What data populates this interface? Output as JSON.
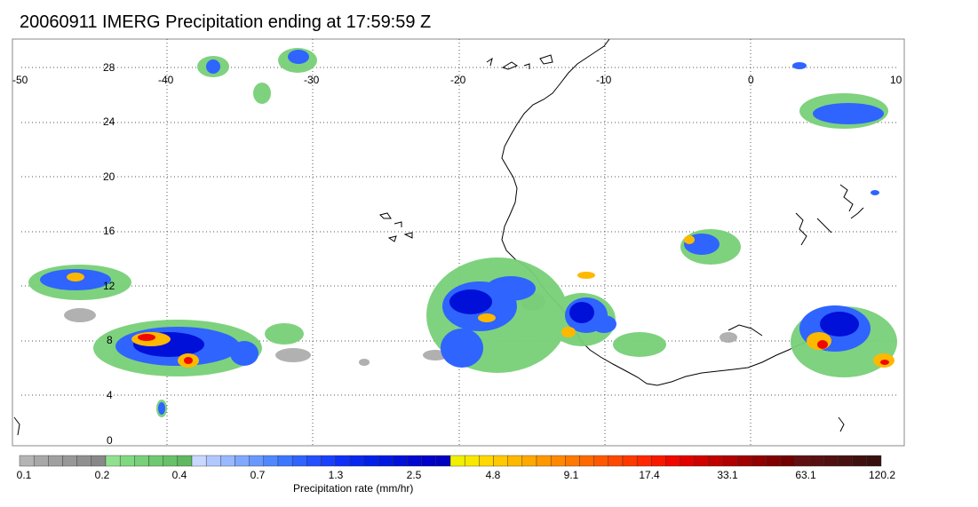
{
  "title": "20060911 IMERG Precipitation ending at 17:59:59 Z",
  "map": {
    "lon_labels": [
      "-50",
      "-40",
      "-30",
      "-20",
      "-10",
      "0",
      "10"
    ],
    "lat_labels": [
      "28",
      "24",
      "20",
      "16",
      "12",
      "8",
      "4",
      "0"
    ],
    "extent": {
      "lon": [
        -50,
        10
      ],
      "lat": [
        -1,
        30
      ]
    },
    "gridlines": "dotted",
    "colors": {
      "land_outline": "#000000",
      "grid": "#555555"
    }
  },
  "colorbar": {
    "label": "Precipitation rate (mm/hr)",
    "tick_labels": [
      "0.1",
      "0.2",
      "0.4",
      "0.7",
      "1.3",
      "2.5",
      "4.8",
      "9.1",
      "17.4",
      "33.1",
      "63.1",
      "120.2"
    ],
    "colors": [
      "#b4b4b4",
      "#a8a8a8",
      "#a0a0a0",
      "#989898",
      "#909090",
      "#888888",
      "#90e090",
      "#80d880",
      "#78d078",
      "#70c870",
      "#68c068",
      "#60b860",
      "#c8d8ff",
      "#b0c8ff",
      "#98b8ff",
      "#80a8ff",
      "#6898ff",
      "#5088ff",
      "#3c78ff",
      "#2f64ff",
      "#2450ff",
      "#1a40ff",
      "#1030f8",
      "#0828f0",
      "#0020e8",
      "#0018e0",
      "#0010d8",
      "#0008d0",
      "#0000c8",
      "#0000c0",
      "#f0f000",
      "#f8e800",
      "#ffd800",
      "#ffc800",
      "#ffb800",
      "#ffa800",
      "#ff9800",
      "#ff8800",
      "#ff7800",
      "#ff6800",
      "#ff5800",
      "#ff4800",
      "#ff3800",
      "#ff2800",
      "#f81800",
      "#f00800",
      "#e00000",
      "#d00000",
      "#c00000",
      "#b00000",
      "#a00000",
      "#900000",
      "#800000",
      "#700000",
      "#601010",
      "#581010",
      "#501010",
      "#481010",
      "#401010",
      "#381010"
    ]
  }
}
